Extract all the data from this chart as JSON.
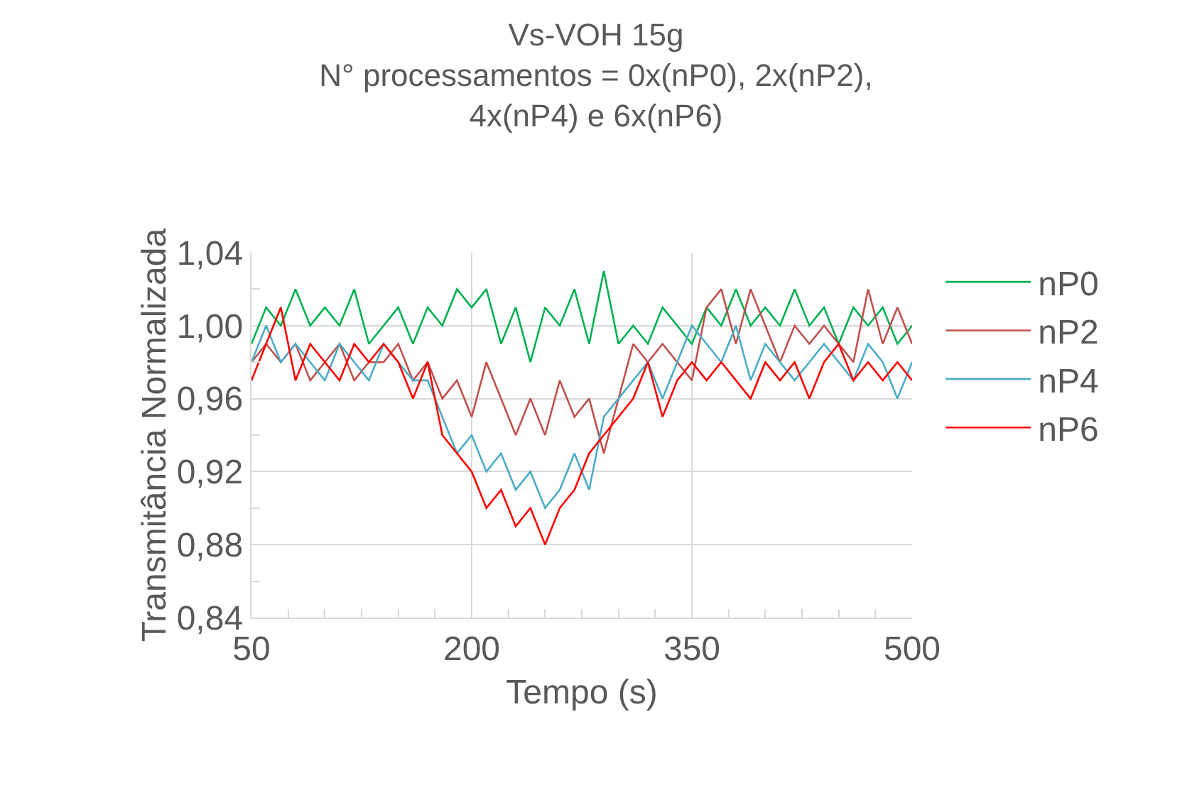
{
  "chart_data": {
    "type": "line",
    "title": "Vs-VOH 15g\nN° processamentos = 0x(nP0), 2x(nP2),\n4x(nP4) e 6x(nP6)",
    "xlabel": "Tempo (s)",
    "ylabel": "Transmitância Normalizada",
    "x": [
      50,
      60,
      70,
      80,
      90,
      100,
      110,
      120,
      130,
      140,
      150,
      160,
      170,
      180,
      190,
      200,
      210,
      220,
      230,
      240,
      250,
      260,
      270,
      280,
      290,
      300,
      310,
      320,
      330,
      340,
      350,
      360,
      370,
      380,
      390,
      400,
      410,
      420,
      430,
      440,
      450,
      460,
      470,
      480,
      490,
      500
    ],
    "series": [
      {
        "name": "nP0",
        "color": "#00b050",
        "values": [
          0.99,
          1.01,
          1.0,
          1.02,
          1.0,
          1.01,
          1.0,
          1.02,
          0.99,
          1.0,
          1.01,
          0.99,
          1.01,
          1.0,
          1.02,
          1.01,
          1.02,
          0.99,
          1.01,
          0.98,
          1.01,
          1.0,
          1.02,
          0.99,
          1.03,
          0.99,
          1.0,
          0.99,
          1.01,
          1.0,
          0.99,
          1.01,
          1.0,
          1.02,
          1.0,
          1.01,
          1.0,
          1.02,
          1.0,
          1.01,
          0.99,
          1.01,
          1.0,
          1.01,
          0.99,
          1.0
        ]
      },
      {
        "name": "nP2",
        "color": "#c0504d",
        "values": [
          0.98,
          0.99,
          0.98,
          0.99,
          0.97,
          0.98,
          0.99,
          0.97,
          0.98,
          0.98,
          0.99,
          0.97,
          0.98,
          0.96,
          0.97,
          0.95,
          0.98,
          0.96,
          0.94,
          0.96,
          0.94,
          0.97,
          0.95,
          0.96,
          0.93,
          0.96,
          0.99,
          0.98,
          0.99,
          0.98,
          0.97,
          1.01,
          1.02,
          0.99,
          1.02,
          1.0,
          0.98,
          1.0,
          0.99,
          1.0,
          0.99,
          0.98,
          1.02,
          0.99,
          1.01,
          0.99
        ]
      },
      {
        "name": "nP4",
        "color": "#4bacc6",
        "values": [
          0.98,
          1.0,
          0.98,
          0.99,
          0.98,
          0.97,
          0.99,
          0.98,
          0.97,
          0.99,
          0.98,
          0.97,
          0.97,
          0.95,
          0.93,
          0.94,
          0.92,
          0.93,
          0.91,
          0.92,
          0.9,
          0.91,
          0.93,
          0.91,
          0.95,
          0.96,
          0.97,
          0.98,
          0.96,
          0.98,
          1.0,
          0.99,
          0.98,
          1.0,
          0.97,
          0.99,
          0.98,
          0.97,
          0.98,
          0.99,
          0.98,
          0.97,
          0.99,
          0.98,
          0.96,
          0.98
        ]
      },
      {
        "name": "nP6",
        "color": "#ff0000",
        "values": [
          0.97,
          0.99,
          1.01,
          0.97,
          0.99,
          0.98,
          0.97,
          0.99,
          0.98,
          0.99,
          0.98,
          0.96,
          0.98,
          0.94,
          0.93,
          0.92,
          0.9,
          0.91,
          0.89,
          0.9,
          0.88,
          0.9,
          0.91,
          0.93,
          0.94,
          0.95,
          0.96,
          0.98,
          0.95,
          0.97,
          0.98,
          0.97,
          0.98,
          0.97,
          0.96,
          0.98,
          0.97,
          0.98,
          0.96,
          0.98,
          0.99,
          0.97,
          0.98,
          0.97,
          0.98,
          0.97
        ]
      }
    ],
    "xlim": [
      50,
      500
    ],
    "xticks": [
      50,
      {
        "value": 75,
        "label": null
      },
      {
        "value": 100,
        "label": null
      },
      {
        "value": 125,
        "label": null
      },
      {
        "value": 150,
        "label": null
      },
      {
        "value": 175,
        "label": null
      },
      200,
      {
        "value": 225,
        "label": null
      },
      {
        "value": 250,
        "label": null
      },
      {
        "value": 275,
        "label": null
      },
      {
        "value": 300,
        "label": null
      },
      {
        "value": 325,
        "label": null
      },
      350,
      {
        "value": 375,
        "label": null
      },
      {
        "value": 400,
        "label": null
      },
      {
        "value": 425,
        "label": null
      },
      {
        "value": 450,
        "label": null
      },
      {
        "value": 475,
        "label": null
      },
      500
    ],
    "ylim": [
      0.84,
      1.04
    ],
    "yticks": [
      {
        "value": 0.84,
        "label": "0,84"
      },
      {
        "value": 0.86,
        "label": null
      },
      {
        "value": 0.88,
        "label": "0,88"
      },
      {
        "value": 0.9,
        "label": null
      },
      {
        "value": 0.92,
        "label": "0,92"
      },
      {
        "value": 0.94,
        "label": null
      },
      {
        "value": 0.96,
        "label": "0,96"
      },
      {
        "value": 0.98,
        "label": null
      },
      {
        "value": 1.0,
        "label": "1,00"
      },
      {
        "value": 1.02,
        "label": null
      },
      {
        "value": 1.04,
        "label": "1,04"
      }
    ],
    "grid": true,
    "legend": "right",
    "marker": "none",
    "line_style": "solid"
  }
}
